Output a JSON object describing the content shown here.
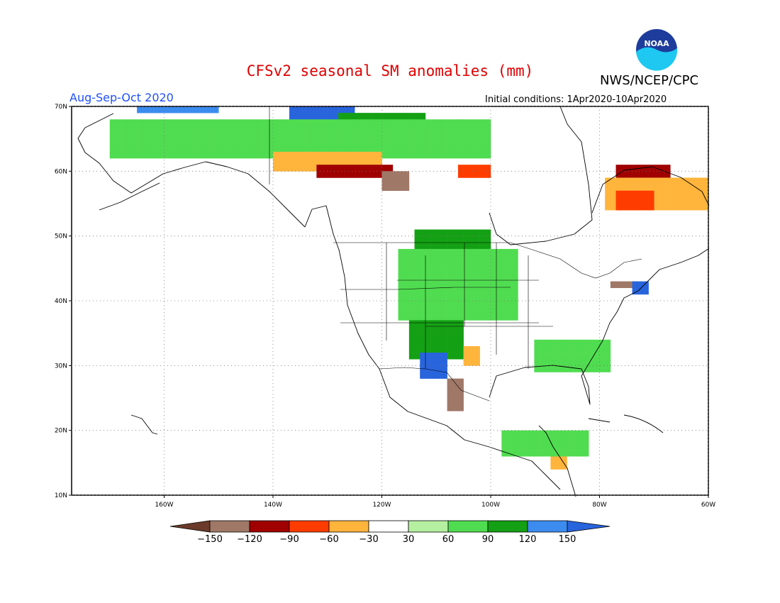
{
  "header": {
    "title": "CFSv2 seasonal SM anomalies (mm)",
    "agency": "NWS/NCEP/CPC",
    "season": "Aug-Sep-Oct 2020",
    "initial_conditions": "Initial conditions: 1Apr2020-10Apr2020",
    "logo_text": "NOAA"
  },
  "map_axes": {
    "lon_range": [
      -177,
      -60
    ],
    "lat_range": [
      10,
      70
    ],
    "lon_ticks": [
      {
        "value": -160,
        "label": "160W"
      },
      {
        "value": -140,
        "label": "140W"
      },
      {
        "value": -120,
        "label": "120W"
      },
      {
        "value": -100,
        "label": "100W"
      },
      {
        "value": -80,
        "label": "80W"
      },
      {
        "value": -60,
        "label": "60W"
      }
    ],
    "lat_ticks": [
      {
        "value": 70,
        "label": "70N"
      },
      {
        "value": 60,
        "label": "60N"
      },
      {
        "value": 50,
        "label": "50N"
      },
      {
        "value": 40,
        "label": "40N"
      },
      {
        "value": 30,
        "label": "30N"
      },
      {
        "value": 20,
        "label": "20N"
      },
      {
        "value": 10,
        "label": "10N"
      }
    ],
    "grid": "dotted"
  },
  "colorbar": {
    "colors": [
      "#6b3a2a",
      "#a07868",
      "#a00000",
      "#ff3c00",
      "#ffb43c",
      "#ffffff",
      "#b4f0a0",
      "#50dc50",
      "#14a014",
      "#3c8cf0",
      "#2864dc"
    ],
    "labels": [
      "-150",
      "-120",
      "-90",
      "-60",
      "-30",
      "30",
      "60",
      "90",
      "120",
      "150"
    ]
  },
  "chart_data": {
    "type": "heatmap",
    "title": "CFSv2 seasonal SM anomalies (mm)",
    "units": "mm",
    "region": "North America",
    "cell_size_deg": 1,
    "regions": [
      {
        "category": "120",
        "lon": [
          -165,
          -150
        ],
        "lat": [
          69,
          70
        ]
      },
      {
        "category": "150",
        "lon": [
          -137,
          -125
        ],
        "lat": [
          68,
          70
        ]
      },
      {
        "category": "90",
        "lon": [
          -128,
          -112
        ],
        "lat": [
          67,
          69
        ]
      },
      {
        "category": "60",
        "lon": [
          -170,
          -100
        ],
        "lat": [
          62,
          68
        ]
      },
      {
        "category": "-30",
        "lon": [
          -140,
          -120
        ],
        "lat": [
          60,
          63
        ]
      },
      {
        "category": "-90",
        "lon": [
          -132,
          -118
        ],
        "lat": [
          59,
          61
        ]
      },
      {
        "category": "-120",
        "lon": [
          -120,
          -115
        ],
        "lat": [
          57,
          60
        ]
      },
      {
        "category": "-60",
        "lon": [
          -106,
          -100
        ],
        "lat": [
          59,
          61
        ]
      },
      {
        "category": "-90",
        "lon": [
          -77,
          -67
        ],
        "lat": [
          59,
          61
        ]
      },
      {
        "category": "-30",
        "lon": [
          -79,
          -60
        ],
        "lat": [
          54,
          59
        ]
      },
      {
        "category": "-60",
        "lon": [
          -77,
          -70
        ],
        "lat": [
          54,
          57
        ]
      },
      {
        "category": "90",
        "lon": [
          -114,
          -100
        ],
        "lat": [
          45,
          51
        ]
      },
      {
        "category": "60",
        "lon": [
          -117,
          -95
        ],
        "lat": [
          37,
          48
        ]
      },
      {
        "category": "90",
        "lon": [
          -115,
          -105
        ],
        "lat": [
          31,
          37
        ]
      },
      {
        "category": "150",
        "lon": [
          -113,
          -108
        ],
        "lat": [
          28,
          32
        ]
      },
      {
        "category": "-120",
        "lon": [
          -108,
          -105
        ],
        "lat": [
          23,
          28
        ]
      },
      {
        "category": "-30",
        "lon": [
          -105,
          -102
        ],
        "lat": [
          30,
          33
        ]
      },
      {
        "category": "60",
        "lon": [
          -92,
          -78
        ],
        "lat": [
          29,
          34
        ]
      },
      {
        "category": "-120",
        "lon": [
          -78,
          -73
        ],
        "lat": [
          42,
          43
        ]
      },
      {
        "category": "150",
        "lon": [
          -74,
          -71
        ],
        "lat": [
          41,
          43
        ]
      },
      {
        "category": "-30",
        "lon": [
          -89,
          -86
        ],
        "lat": [
          14,
          16
        ]
      },
      {
        "category": "60",
        "lon": [
          -98,
          -82
        ],
        "lat": [
          16,
          20
        ]
      }
    ]
  }
}
